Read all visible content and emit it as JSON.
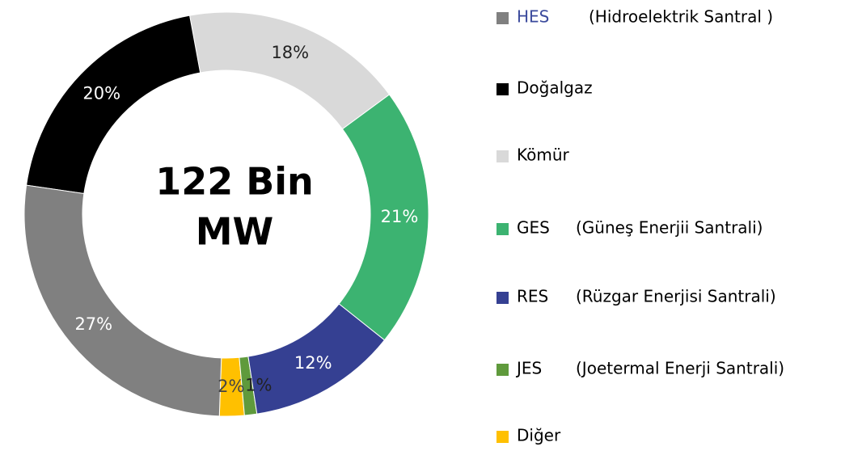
{
  "chart_data": {
    "type": "donut",
    "center_text": [
      "122 Bin",
      "MW"
    ],
    "series": [
      {
        "name": "HES",
        "description": "(Hidroelektrik Santral )",
        "color": "#808080",
        "legend_text_color": "#3b4a9c",
        "label_color": "#ffffff",
        "values": [
          27
        ],
        "value_labels": [
          "27%"
        ]
      },
      {
        "name": "Doğalgaz",
        "color": "#000000",
        "legend_text_color": "#000000",
        "label_color": "#ffffff",
        "values": [
          20
        ],
        "value_labels": [
          "20%"
        ]
      },
      {
        "name": "Kömür",
        "color": "#d9d9d9",
        "legend_text_color": "#000000",
        "label_color": "#222222",
        "values": [
          18
        ],
        "value_labels": [
          "18%"
        ]
      },
      {
        "name": "GES",
        "description": "(Güneş Enerjii Santrali)",
        "color": "#3cb371",
        "legend_text_color": "#000000",
        "label_color": "#ffffff",
        "values": [
          21
        ],
        "value_labels": [
          "21%"
        ]
      },
      {
        "name": "RES",
        "description": "(Rüzgar Enerjisi Santrali)",
        "color": "#354092",
        "legend_text_color": "#000000",
        "label_color": "#ffffff",
        "values": [
          12
        ],
        "value_labels": [
          "12%"
        ]
      },
      {
        "name": "JES",
        "description": "(Joetermal Enerji Santrali)",
        "color": "#5f9a3c",
        "legend_text_color": "#000000",
        "label_color": "#222222",
        "values": [
          1
        ],
        "value_labels": [
          "1%"
        ]
      },
      {
        "name": "Diğer",
        "color": "#ffc000",
        "legend_text_color": "#000000",
        "label_color": "#444444",
        "values": [
          2
        ],
        "value_labels": [
          "2%"
        ]
      }
    ]
  }
}
